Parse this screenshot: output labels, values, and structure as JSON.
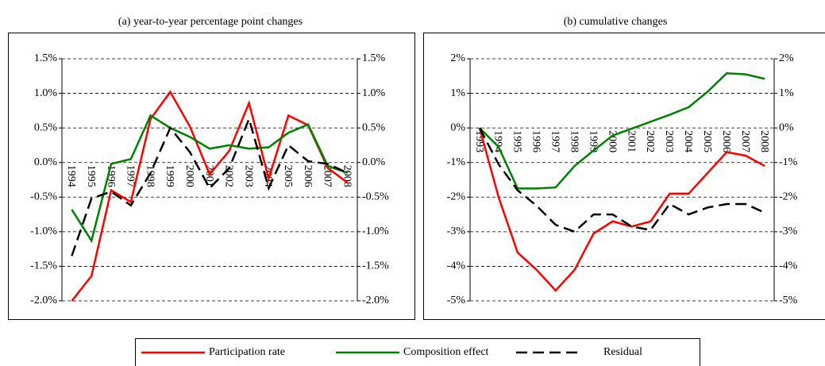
{
  "chart_data": [
    {
      "type": "line",
      "title": "(a) year-to-year percentage point changes",
      "categories": [
        "1994",
        "1995",
        "1996",
        "1997",
        "1998",
        "1999",
        "2000",
        "2001",
        "2002",
        "2003",
        "2004",
        "2005",
        "2006",
        "2007",
        "2008"
      ],
      "series": [
        {
          "name": "Participation rate",
          "color": "#ff0000",
          "values": [
            -2.0,
            -1.64,
            -0.4,
            -0.57,
            0.63,
            1.02,
            0.52,
            -0.17,
            0.17,
            0.86,
            -0.23,
            0.68,
            0.54,
            -0.08,
            -0.29
          ]
        },
        {
          "name": "Composition effect",
          "color": "#008000",
          "values": [
            -0.68,
            -1.13,
            -0.02,
            0.05,
            0.68,
            0.5,
            0.37,
            0.2,
            0.25,
            0.2,
            0.22,
            0.43,
            0.55,
            -0.05,
            -0.15
          ]
        },
        {
          "name": "Residual",
          "color": "#000000",
          "dashed": true,
          "values": [
            -1.35,
            -0.52,
            -0.42,
            -0.62,
            -0.15,
            0.5,
            0.15,
            -0.37,
            -0.08,
            0.63,
            -0.37,
            0.25,
            0.02,
            -0.02,
            -0.15
          ]
        }
      ],
      "ylim": [
        -2.0,
        1.5
      ],
      "yticks": [
        {
          "value": -2.0,
          "label": "-2.0%"
        },
        {
          "value": -1.5,
          "label": "-1.5%"
        },
        {
          "value": -1.0,
          "label": "-1.0%"
        },
        {
          "value": -0.5,
          "label": "-0.5%"
        },
        {
          "value": 0.0,
          "label": "0.0%"
        },
        {
          "value": 0.5,
          "label": "0.5%"
        },
        {
          "value": 1.0,
          "label": "1.0%"
        },
        {
          "value": 1.5,
          "label": "1.5%"
        }
      ],
      "y2lim": [
        -2.0,
        1.5
      ],
      "y2ticks": [
        {
          "value": -2.0,
          "label": "-2.0%"
        },
        {
          "value": -1.5,
          "label": "-1.5%"
        },
        {
          "value": -1.0,
          "label": "-1.0%"
        },
        {
          "value": -0.5,
          "label": "-0.5%"
        },
        {
          "value": 0.0,
          "label": "0.0%"
        },
        {
          "value": 0.5,
          "label": "0.5%"
        },
        {
          "value": 1.0,
          "label": "1.0%"
        },
        {
          "value": 1.5,
          "label": "1.5%"
        }
      ],
      "grid": true
    },
    {
      "type": "line",
      "title": "(b) cumulative changes",
      "categories": [
        "1993",
        "1994",
        "1995",
        "1996",
        "1997",
        "1998",
        "1999",
        "2000",
        "2001",
        "2002",
        "2003",
        "2004",
        "2005",
        "2006",
        "2007",
        "2008"
      ],
      "series": [
        {
          "color": "#ff0000",
          "values": [
            0,
            -2.0,
            -3.6,
            -4.1,
            -4.7,
            -4.1,
            -3.05,
            -2.7,
            -2.85,
            -2.7,
            -1.9,
            -1.9,
            -1.3,
            -0.7,
            -0.8,
            -1.1
          ]
        },
        {
          "color": "#008000",
          "values": [
            0,
            -0.55,
            -1.75,
            -1.75,
            -1.72,
            -1.1,
            -0.65,
            -0.22,
            -0.02,
            0.18,
            0.38,
            0.6,
            1.05,
            1.58,
            1.55,
            1.42
          ]
        },
        {
          "color": "#000000",
          "dashed": true,
          "values": [
            0,
            -1.05,
            -1.8,
            -2.25,
            -2.8,
            -3.0,
            -2.5,
            -2.5,
            -2.85,
            -2.95,
            -2.2,
            -2.5,
            -2.3,
            -2.2,
            -2.2,
            -2.45
          ]
        }
      ],
      "ylim": [
        -5,
        2
      ],
      "yticks": [
        {
          "value": -5,
          "label": "-5%"
        },
        {
          "value": -4,
          "label": "-4%"
        },
        {
          "value": -3,
          "label": "-3%"
        },
        {
          "value": -2,
          "label": "-2%"
        },
        {
          "value": -1,
          "label": "-1%"
        },
        {
          "value": 0,
          "label": "0%"
        },
        {
          "value": 1,
          "label": "1%"
        },
        {
          "value": 2,
          "label": "2%"
        }
      ],
      "y2lim": [
        -5,
        2
      ],
      "y2ticks": [
        {
          "value": -5,
          "label": "-5%"
        },
        {
          "value": -4,
          "label": "-4%"
        },
        {
          "value": -3,
          "label": "-3%"
        },
        {
          "value": -2,
          "label": "-2%"
        },
        {
          "value": -1,
          "label": "-1%"
        },
        {
          "value": 0,
          "label": "0%"
        },
        {
          "value": 1,
          "label": "1%"
        },
        {
          "value": 2,
          "label": "2%"
        }
      ],
      "grid": true
    }
  ]
}
